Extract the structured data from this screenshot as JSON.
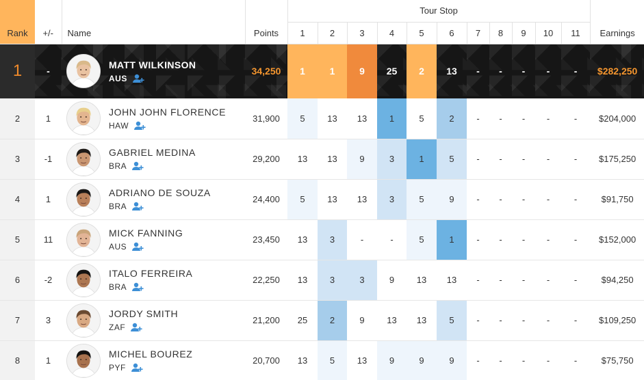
{
  "headers": {
    "rank": "Rank",
    "plus_minus": "+/-",
    "name": "Name",
    "points": "Points",
    "tour_stop": "Tour Stop",
    "earnings": "Earnings",
    "stops": [
      "1",
      "2",
      "3",
      "4",
      "5",
      "6",
      "7",
      "8",
      "9",
      "10",
      "11"
    ]
  },
  "colors": {
    "leader_accent": "#f08a2b",
    "leader_stop_light": "#ffb55c",
    "leader_stop_dark": "#f08a3c",
    "positive": "#58b530",
    "negative": "#d0372f",
    "result_shades": [
      "#eef5fc",
      "#d1e4f5",
      "#a6cdeb",
      "#6cb2e2"
    ]
  },
  "rows": [
    {
      "rank": "1",
      "change": "-",
      "name": "MATT WILKINSON",
      "country": "AUS",
      "points": "34,250",
      "stops": [
        "1",
        "1",
        "9",
        "25",
        "2",
        "13",
        "-",
        "-",
        "-",
        "-",
        "-"
      ],
      "stop_styles": [
        "light",
        "light",
        "dark",
        "none",
        "light",
        "none",
        "none",
        "none",
        "none",
        "none",
        "none"
      ],
      "earnings": "$282,250",
      "avatar": {
        "hair": "#d9b98a",
        "skin": "#e9c2a1"
      }
    },
    {
      "rank": "2",
      "change": "1",
      "name": "JOHN JOHN FLORENCE",
      "country": "HAW",
      "points": "31,900",
      "stops": [
        "5",
        "13",
        "13",
        "1",
        "5",
        "2",
        "-",
        "-",
        "-",
        "-",
        "-"
      ],
      "stop_styles": [
        1,
        0,
        0,
        4,
        0,
        3,
        0,
        0,
        0,
        0,
        0
      ],
      "earnings": "$204,000",
      "avatar": {
        "hair": "#e8cf8c",
        "skin": "#e3b58f"
      }
    },
    {
      "rank": "3",
      "change": "-1",
      "name": "GABRIEL MEDINA",
      "country": "BRA",
      "points": "29,200",
      "stops": [
        "13",
        "13",
        "9",
        "3",
        "1",
        "5",
        "-",
        "-",
        "-",
        "-",
        "-"
      ],
      "stop_styles": [
        0,
        0,
        1,
        2,
        4,
        2,
        0,
        0,
        0,
        0,
        0
      ],
      "earnings": "$175,250",
      "avatar": {
        "hair": "#1e1a17",
        "skin": "#c99671"
      }
    },
    {
      "rank": "4",
      "change": "1",
      "name": "ADRIANO DE SOUZA",
      "country": "BRA",
      "points": "24,400",
      "stops": [
        "5",
        "13",
        "13",
        "3",
        "5",
        "9",
        "-",
        "-",
        "-",
        "-",
        "-"
      ],
      "stop_styles": [
        1,
        0,
        0,
        2,
        1,
        1,
        0,
        0,
        0,
        0,
        0
      ],
      "earnings": "$91,750",
      "avatar": {
        "hair": "#1c1917",
        "skin": "#b9805a"
      }
    },
    {
      "rank": "5",
      "change": "11",
      "name": "MICK FANNING",
      "country": "AUS",
      "points": "23,450",
      "stops": [
        "13",
        "3",
        "-",
        "-",
        "5",
        "1",
        "-",
        "-",
        "-",
        "-",
        "-"
      ],
      "stop_styles": [
        0,
        2,
        0,
        0,
        1,
        4,
        0,
        0,
        0,
        0,
        0
      ],
      "earnings": "$152,000",
      "avatar": {
        "hair": "#c9a47a",
        "skin": "#e2b496"
      }
    },
    {
      "rank": "6",
      "change": "-2",
      "name": "ITALO FERREIRA",
      "country": "BRA",
      "points": "22,250",
      "stops": [
        "13",
        "3",
        "3",
        "9",
        "13",
        "13",
        "-",
        "-",
        "-",
        "-",
        "-"
      ],
      "stop_styles": [
        0,
        2,
        2,
        0,
        0,
        0,
        0,
        0,
        0,
        0,
        0
      ],
      "earnings": "$94,250",
      "avatar": {
        "hair": "#161412",
        "skin": "#ad7752"
      }
    },
    {
      "rank": "7",
      "change": "3",
      "name": "JORDY SMITH",
      "country": "ZAF",
      "points": "21,200",
      "stops": [
        "25",
        "2",
        "9",
        "13",
        "13",
        "5",
        "-",
        "-",
        "-",
        "-",
        "-"
      ],
      "stop_styles": [
        0,
        3,
        0,
        0,
        0,
        2,
        0,
        0,
        0,
        0,
        0
      ],
      "earnings": "$109,250",
      "avatar": {
        "hair": "#6b4a31",
        "skin": "#d9a983"
      }
    },
    {
      "rank": "8",
      "change": "1",
      "name": "MICHEL BOUREZ",
      "country": "PYF",
      "points": "20,700",
      "stops": [
        "13",
        "5",
        "13",
        "9",
        "9",
        "9",
        "-",
        "-",
        "-",
        "-",
        "-"
      ],
      "stop_styles": [
        0,
        1,
        0,
        1,
        1,
        1,
        0,
        0,
        0,
        0,
        0
      ],
      "earnings": "$75,750",
      "avatar": {
        "hair": "#141210",
        "skin": "#a8724e"
      }
    }
  ]
}
